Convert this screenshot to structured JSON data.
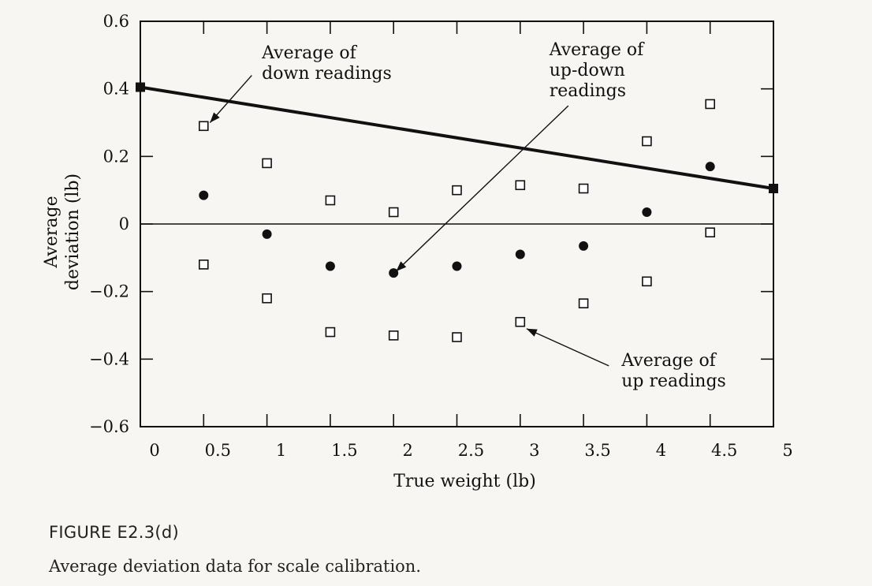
{
  "figure": {
    "label": "FIGURE E2.3(d)",
    "caption": "Average deviation data for scale calibration."
  },
  "chart_data": {
    "type": "scatter",
    "xlabel": "True weight (lb)",
    "ylabel_line1": "Average",
    "ylabel_line2": "deviation (lb)",
    "xlim": [
      0,
      5
    ],
    "ylim": [
      -0.6,
      0.6
    ],
    "x_ticks": [
      0,
      0.5,
      1,
      1.5,
      2,
      2.5,
      3,
      3.5,
      4,
      4.5,
      5
    ],
    "x_tick_labels": [
      "0",
      "0.5",
      "1",
      "1.5",
      "2",
      "2.5",
      "3",
      "3.5",
      "4",
      "4.5",
      "5"
    ],
    "y_ticks": [
      -0.6,
      -0.4,
      -0.2,
      0,
      0.2,
      0.4,
      0.6
    ],
    "y_tick_labels": [
      "−0.6",
      "−0.4",
      "−0.2",
      "0",
      "0.2",
      "0.4",
      "0.6"
    ],
    "grid": false,
    "series": [
      {
        "name": "Average of down readings",
        "marker": "open-square",
        "x": [
          0.5,
          1,
          1.5,
          2,
          2.5,
          3,
          3.5,
          4,
          4.5
        ],
        "y": [
          0.29,
          0.18,
          0.07,
          0.035,
          0.1,
          0.115,
          0.105,
          0.245,
          0.355
        ]
      },
      {
        "name": "Average of up readings",
        "marker": "open-square",
        "x": [
          0.5,
          1,
          1.5,
          2,
          2.5,
          3,
          3.5,
          4,
          4.5
        ],
        "y": [
          -0.12,
          -0.22,
          -0.32,
          -0.33,
          -0.335,
          -0.29,
          -0.235,
          -0.17,
          -0.025
        ]
      },
      {
        "name": "Average of up-down readings",
        "marker": "filled-circle",
        "x": [
          0.5,
          1,
          1.5,
          2,
          2.5,
          3,
          3.5,
          4,
          4.5
        ],
        "y": [
          0.085,
          -0.03,
          -0.125,
          -0.145,
          -0.125,
          -0.09,
          -0.065,
          0.035,
          0.17
        ]
      }
    ],
    "line": {
      "x": [
        0,
        5
      ],
      "y": [
        0.405,
        0.105
      ]
    },
    "annotations": [
      {
        "lines": [
          "Average of",
          "down readings"
        ],
        "text_at": [
          0.96,
          0.49
        ],
        "arrow_to": [
          0.53,
          0.29
        ]
      },
      {
        "lines": [
          "Average of",
          "up-down",
          "readings"
        ],
        "text_at": [
          3.23,
          0.5
        ],
        "arrow_to": [
          2.0,
          -0.145
        ]
      },
      {
        "lines": [
          "Average of",
          "up readings"
        ],
        "text_at": [
          3.8,
          -0.42
        ],
        "arrow_to": [
          3.02,
          -0.31
        ]
      }
    ]
  }
}
